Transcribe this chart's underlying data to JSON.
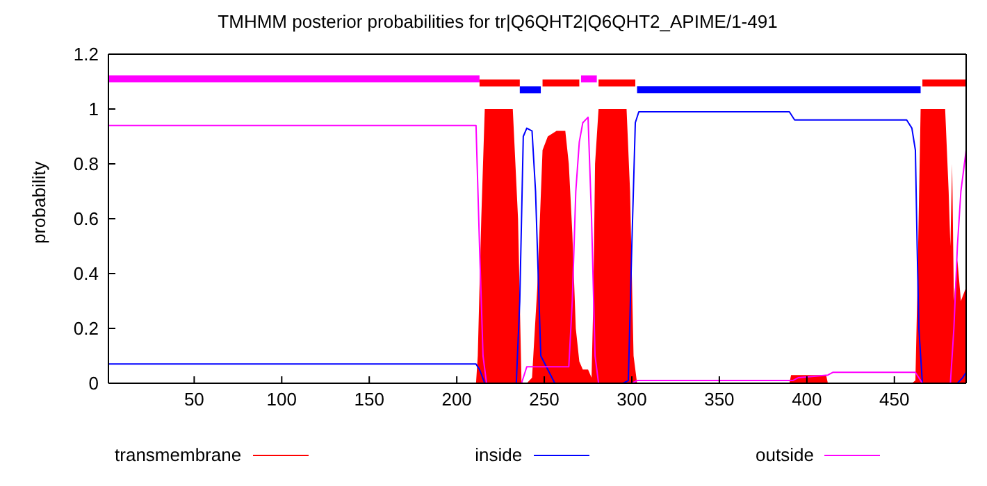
{
  "chart_data": {
    "type": "line",
    "title": "TMHMM posterior probabilities for tr|Q6QHT2|Q6QHT2_APIME/1-491",
    "ylabel": "probability",
    "xlim": [
      1,
      491
    ],
    "xticks": [
      50,
      100,
      150,
      200,
      250,
      300,
      350,
      400,
      450
    ],
    "ylim": [
      0,
      1.2
    ],
    "yticks": [
      0,
      0.2,
      0.4,
      0.6,
      0.8,
      1,
      1.2
    ],
    "legend": "bottom",
    "grid": false,
    "series": [
      {
        "name": "transmembrane",
        "type": "area",
        "color": "#ff0000",
        "x": [
          1,
          211,
          212,
          214,
          216,
          232,
          235,
          237,
          240,
          243,
          246,
          249,
          252,
          257,
          262,
          264,
          266,
          268,
          270,
          272,
          275,
          277,
          278,
          279,
          281,
          297,
          299,
          301,
          303,
          390,
          391,
          411,
          412,
          460,
          462,
          463,
          465,
          479,
          481,
          482,
          483,
          484,
          486,
          488,
          491
        ],
        "values": [
          0,
          0,
          0.1,
          0.6,
          1,
          1,
          0.6,
          0,
          0,
          0.02,
          0.35,
          0.85,
          0.9,
          0.92,
          0.92,
          0.8,
          0.55,
          0.2,
          0.08,
          0.05,
          0.05,
          0.02,
          0.3,
          0.8,
          1,
          1,
          0.7,
          0.1,
          0,
          0,
          0.03,
          0.03,
          0,
          0,
          0.01,
          0.3,
          1,
          1,
          0.7,
          0.5,
          0.8,
          0.3,
          0.45,
          0.3,
          0.35
        ]
      },
      {
        "name": "inside",
        "color": "#0000ff",
        "x": [
          1,
          211,
          213,
          216,
          234,
          236,
          238,
          240,
          243,
          245,
          246,
          248,
          252,
          256,
          295,
          298,
          300,
          302,
          304,
          390,
          393,
          457,
          460,
          462,
          463,
          464,
          466,
          486,
          489,
          491
        ],
        "values": [
          0.07,
          0.07,
          0.05,
          0,
          0,
          0.3,
          0.9,
          0.93,
          0.92,
          0.7,
          0.5,
          0.1,
          0.05,
          0,
          0,
          0.01,
          0.5,
          0.95,
          0.99,
          0.99,
          0.96,
          0.96,
          0.93,
          0.85,
          0.5,
          0.2,
          0,
          0,
          0.02,
          0.04
        ]
      },
      {
        "name": "outside",
        "color": "#ff00ff",
        "x": [
          1,
          211,
          213,
          215,
          217,
          237,
          240,
          264,
          266,
          268,
          270,
          272,
          275,
          277,
          279,
          281,
          300,
          303,
          392,
          395,
          412,
          415,
          462,
          464,
          466,
          482,
          484,
          486,
          488,
          491
        ],
        "values": [
          0.94,
          0.94,
          0.5,
          0.1,
          0,
          0,
          0.06,
          0.06,
          0.3,
          0.7,
          0.88,
          0.95,
          0.97,
          0.6,
          0.1,
          0,
          0,
          0.01,
          0.01,
          0.02,
          0.03,
          0.04,
          0.04,
          0.02,
          0,
          0,
          0.2,
          0.5,
          0.7,
          0.85
        ]
      },
      {
        "color": "#ff00ff",
        "x": [
          1,
          213
        ],
        "values": [
          1.11,
          1.11
        ]
      },
      {
        "color": "#ff00ff",
        "x": [
          271,
          280
        ],
        "values": [
          1.11,
          1.11
        ]
      },
      {
        "color": "#0000ff",
        "x": [
          236,
          248
        ],
        "values": [
          1.07,
          1.07
        ]
      },
      {
        "color": "#0000ff",
        "x": [
          303,
          465
        ],
        "values": [
          1.07,
          1.07
        ]
      },
      {
        "color": "#ff0000",
        "x": [
          213,
          236
        ],
        "values": [
          1.095,
          1.095
        ]
      },
      {
        "color": "#ff0000",
        "x": [
          249,
          270
        ],
        "values": [
          1.095,
          1.095
        ]
      },
      {
        "color": "#ff0000",
        "x": [
          281,
          302
        ],
        "values": [
          1.095,
          1.095
        ]
      },
      {
        "color": "#ff0000",
        "x": [
          466,
          491
        ],
        "values": [
          1.095,
          1.095
        ]
      }
    ]
  }
}
